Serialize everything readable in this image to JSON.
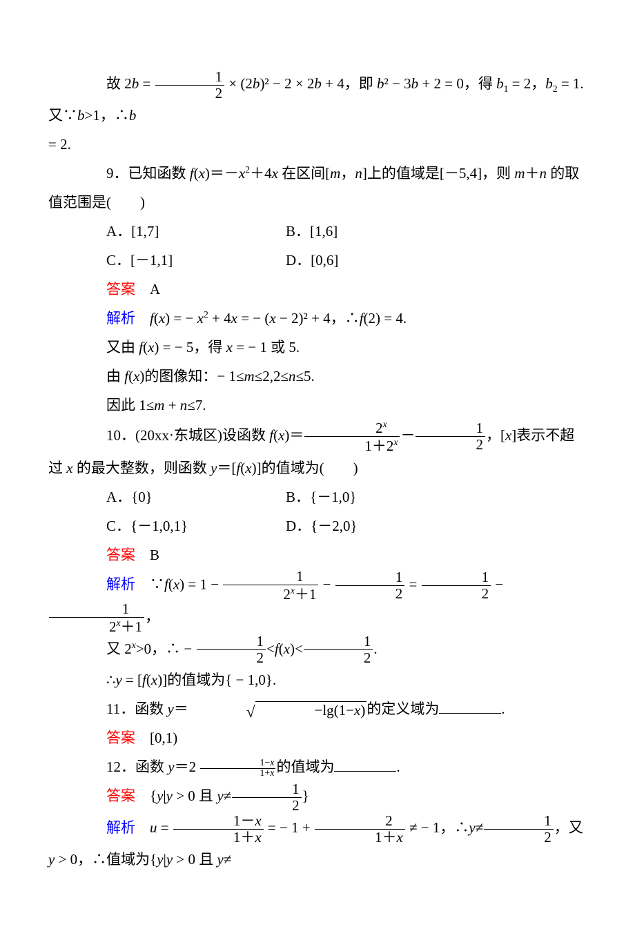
{
  "colors": {
    "text": "#000000",
    "answer_label": "#ff0000",
    "analysis_label": "#0000ff",
    "background": "#ffffff"
  },
  "typography": {
    "font_family": "Times New Roman / SimSun",
    "font_size_pt": 16,
    "line_height": 2.0
  },
  "p8_tail": {
    "pre": "故 ",
    "mid_a": " × (2",
    "mid_b": ")² − 2 × 2",
    "mid_c": " + 4，即 ",
    "mid_d": "² − 3",
    "mid_e": " + 2 = 0，得 ",
    "mid_f": " = 2，",
    "mid_g": " = 1.又∵",
    "mid_h": ">1，∴",
    "line2": " = 2."
  },
  "q9": {
    "stem_a": "9．已知函数 ",
    "stem_b": "＝－",
    "stem_c": "＋4",
    "stem_d": " 在区间[",
    "stem_e": "，",
    "stem_f": "]上的值域是[－5,4]，则 ",
    "stem_g": "＋",
    "stem_h": " 的取值范围是(　　)",
    "optA": "A．[1,7]",
    "optB": "B．[1,6]",
    "optC": "C．[－1,1]",
    "optD": "D．[0,6]",
    "answer_label": "答案",
    "answer": "A",
    "analysis_label": "解析",
    "analysis_l1a": " = − ",
    "analysis_l1b": " + 4",
    "analysis_l1c": " = − (",
    "analysis_l1d": " − 2)² + 4，∴",
    "analysis_l1e": "(2) = 4.",
    "analysis_l2a": "又由 ",
    "analysis_l2b": " = − 5，得 ",
    "analysis_l2c": " = − 1 或 5.",
    "analysis_l3a": "由 ",
    "analysis_l3b": "的图像知：− 1≤",
    "analysis_l3c": "≤2,2≤",
    "analysis_l3d": "≤5.",
    "analysis_l4a": "因此 1≤",
    "analysis_l4b": " + ",
    "analysis_l4c": "≤7."
  },
  "q10": {
    "stem_a": "10．(20xx·东城区)设函数 ",
    "stem_b": "＝",
    "stem_c": "－",
    "stem_d": "，[",
    "stem_e": "]表示不超过 ",
    "stem_f": " 的最大整数，则函数 ",
    "stem_g": "＝[",
    "stem_h": "]的值域为(　　)",
    "frac1_num": "2",
    "frac1_den_a": "1＋2",
    "frac2_num": "1",
    "frac2_den": "2",
    "optA": "A．{0}",
    "optB": "B．{－1,0}",
    "optC": "C．{－1,0,1}",
    "optD": "D．{－2,0}",
    "answer_label": "答案",
    "answer": "B",
    "analysis_label": "解析",
    "an_l1a": "∵",
    "an_l1b": " = 1 − ",
    "an_l1c": " − ",
    "an_l1d": " = ",
    "an_l1e": " − ",
    "an_l1f": "，",
    "f1_num": "1",
    "f1_den_a": "2",
    "f1_den_b": "＋1",
    "f3_num": "1",
    "f3_den": "2",
    "an_l2a": "又 2",
    "an_l2b": ">0，∴ − ",
    "an_l2c": "<",
    "an_l2d": "<",
    "an_l2e": ".",
    "an_l3a": "∴",
    "an_l3b": " = [",
    "an_l3c": "]的值域为{ − 1,0}."
  },
  "q11": {
    "stem_a": "11．函数 ",
    "stem_b": "＝",
    "stem_c": "的定义域为",
    "sqrt_body_a": "−lg(1−",
    "sqrt_body_b": ")",
    "answer_label": "答案",
    "answer": "[0,1)"
  },
  "q12": {
    "stem_a": "12．函数 ",
    "stem_b": "＝2 ",
    "stem_c": "的值域为",
    "exp_num_a": "1−",
    "exp_den_a": "1+",
    "answer_label": "答案",
    "answer_a": "{",
    "answer_b": "|",
    "answer_c": " > 0 且 ",
    "answer_d": "≠",
    "answer_e": "}",
    "afrac_num": "1",
    "afrac_den": "2",
    "analysis_label": "解析",
    "an_a": " = ",
    "an_b": " = − 1 + ",
    "an_c": " ≠ − 1，∴",
    "an_d": "≠",
    "an_e": "，又 ",
    "an_f": " > 0，∴值域为{",
    "an_g": "|",
    "an_h": " > 0 且 ",
    "an_i": "≠",
    "u1_num_a": "1－",
    "u1_den_a": "1＋",
    "u2_num": "2",
    "u2_den_a": "1＋",
    "u3_num": "1",
    "u3_den": "2"
  },
  "vars": {
    "b": "b",
    "x": "x",
    "m": "m",
    "n": "n",
    "y": "y",
    "f": "f",
    "u": "u"
  }
}
